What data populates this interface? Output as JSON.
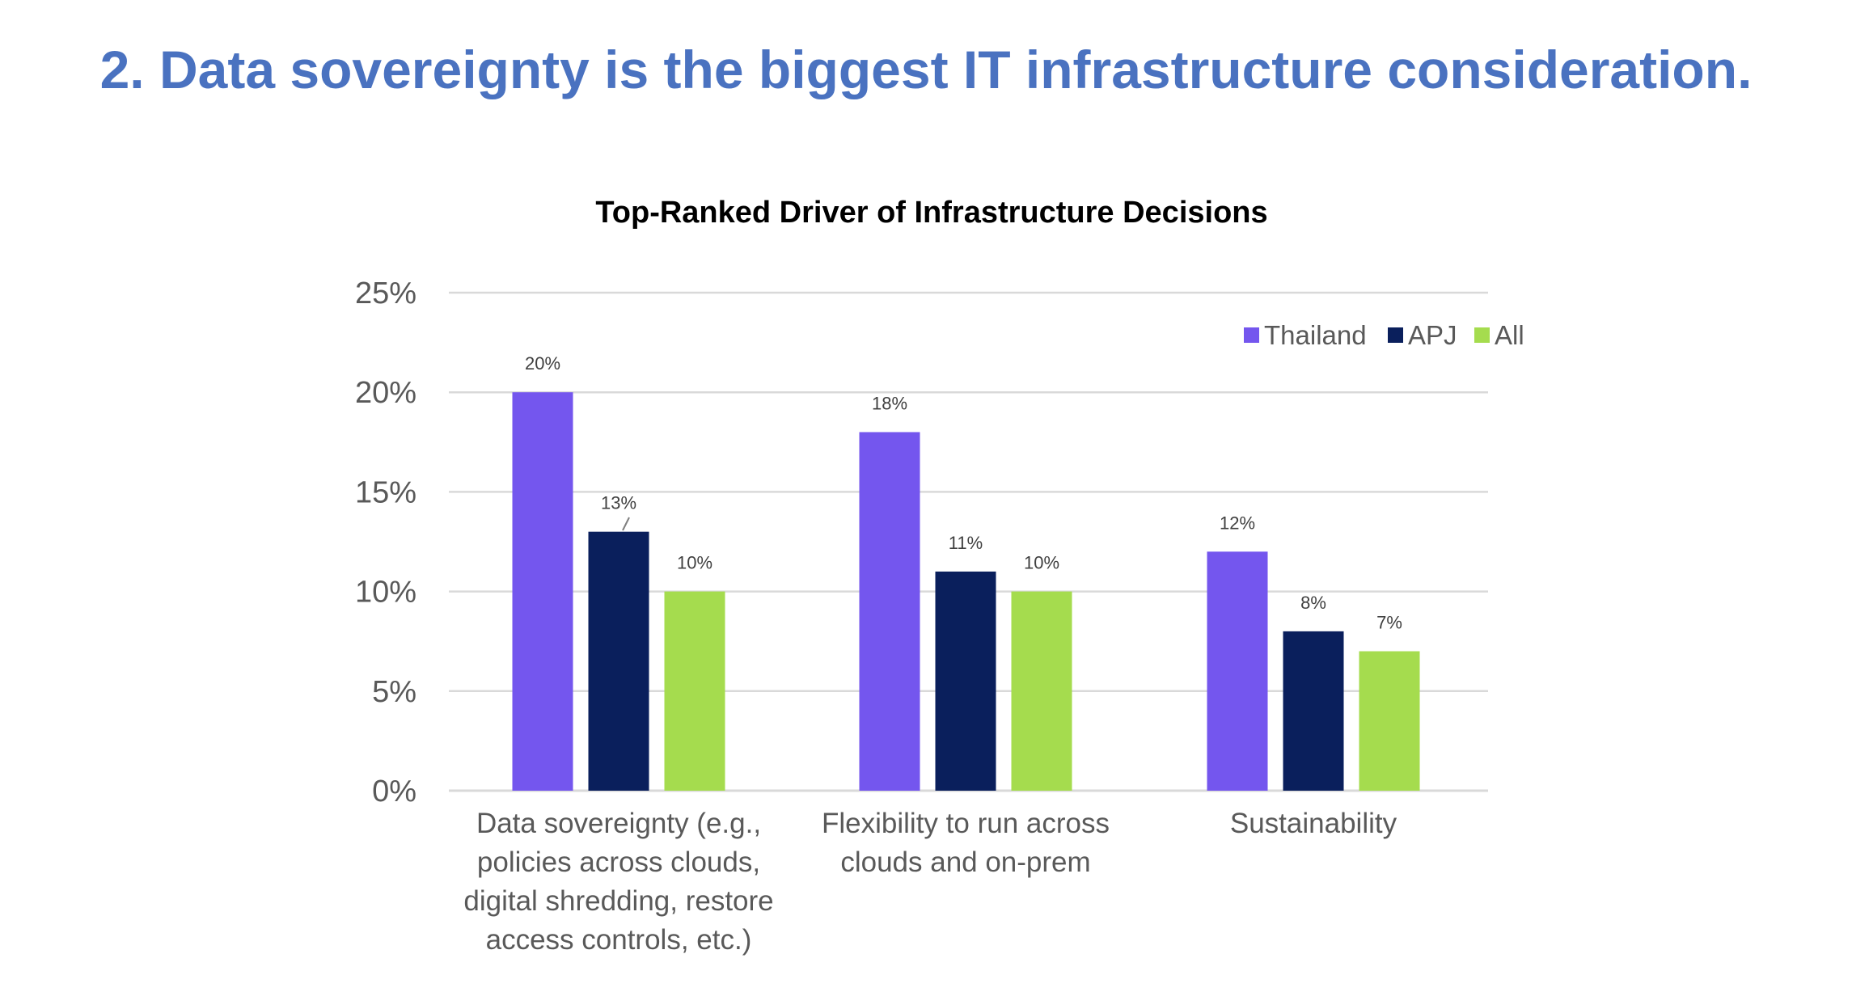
{
  "page": {
    "headline": "2. Data sovereignty is the biggest IT infrastructure consideration."
  },
  "chart_data": {
    "type": "bar",
    "title": "Top-Ranked Driver of Infrastructure Decisions",
    "categories": [
      [
        "Data sovereignty (e.g.,",
        "policies across clouds,",
        "digital shredding, restore",
        "access controls, etc.)"
      ],
      [
        "Flexibility to run across",
        "clouds and on-prem"
      ],
      [
        "Sustainability"
      ]
    ],
    "series": [
      {
        "name": "Thailand",
        "color": "#7456EE",
        "values": [
          20,
          18,
          12
        ],
        "labels": [
          "20%",
          "18%",
          "12%"
        ]
      },
      {
        "name": "APJ",
        "color": "#0A1F5C",
        "values": [
          13,
          11,
          8
        ],
        "labels": [
          "13%",
          "11%",
          "8%"
        ]
      },
      {
        "name": "All",
        "color": "#A5DC4E",
        "values": [
          10,
          10,
          7
        ],
        "labels": [
          "10%",
          "10%",
          "7%"
        ]
      }
    ],
    "yticks": [
      "0%",
      "5%",
      "10%",
      "15%",
      "20%",
      "25%"
    ],
    "ylim": [
      0,
      25
    ],
    "grid": true,
    "legend_position": "top-right",
    "gridline_color": "#D9D9D9"
  }
}
